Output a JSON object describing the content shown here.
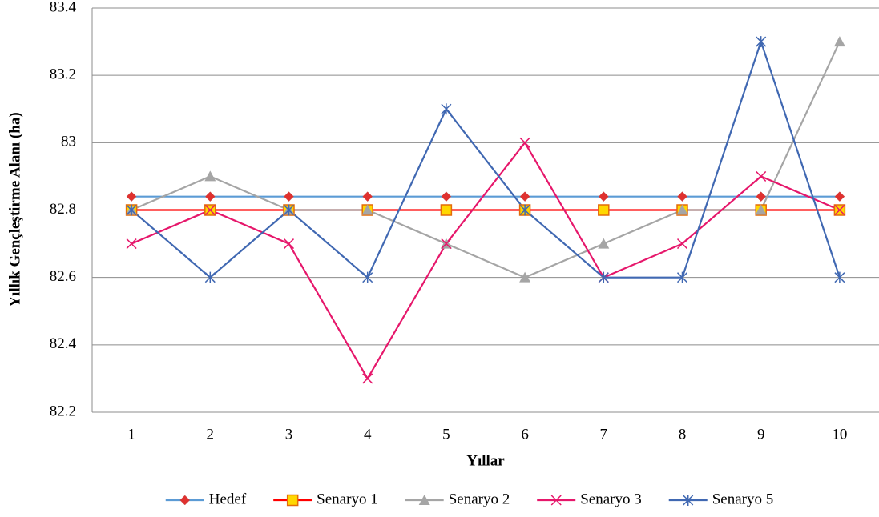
{
  "chart_data": {
    "type": "line",
    "y_label": "Yıllık Gençleştirme Alanı (ha)",
    "x_label": "Yıllar",
    "categories": [
      "1",
      "2",
      "3",
      "4",
      "5",
      "6",
      "7",
      "8",
      "9",
      "10"
    ],
    "ylim": [
      82.2,
      83.4
    ],
    "yticks": [
      82.2,
      82.4,
      82.6,
      82.8,
      83,
      83.2,
      83.4
    ],
    "grid": true,
    "legend": "bottom",
    "series": [
      {
        "name": "Hedef",
        "color": "#5b9bd5",
        "marker": "diamond",
        "marker_color": "#e0312f",
        "values": [
          82.84,
          82.84,
          82.84,
          82.84,
          82.84,
          82.84,
          82.84,
          82.84,
          82.84,
          82.84
        ]
      },
      {
        "name": "Senaryo 1",
        "color": "#ff0000",
        "marker": "square",
        "marker_color": "#ffd700",
        "values": [
          82.8,
          82.8,
          82.8,
          82.8,
          82.8,
          82.8,
          82.8,
          82.8,
          82.8,
          82.8
        ]
      },
      {
        "name": "Senaryo 2",
        "color": "#a5a5a5",
        "marker": "triangle",
        "marker_color": "#a5a5a5",
        "values": [
          82.8,
          82.9,
          82.8,
          82.8,
          82.7,
          82.6,
          82.7,
          82.8,
          82.8,
          83.3
        ]
      },
      {
        "name": "Senaryo 3",
        "color": "#e6176b",
        "marker": "x",
        "marker_color": "#e6176b",
        "values": [
          82.7,
          82.8,
          82.7,
          82.3,
          82.7,
          83.0,
          82.6,
          82.7,
          82.9,
          82.8
        ]
      },
      {
        "name": "Senaryo 5",
        "color": "#4068b2",
        "marker": "star",
        "marker_color": "#4068b2",
        "values": [
          82.8,
          82.6,
          82.8,
          82.6,
          83.1,
          82.8,
          82.6,
          82.6,
          83.3,
          82.6
        ]
      }
    ]
  }
}
